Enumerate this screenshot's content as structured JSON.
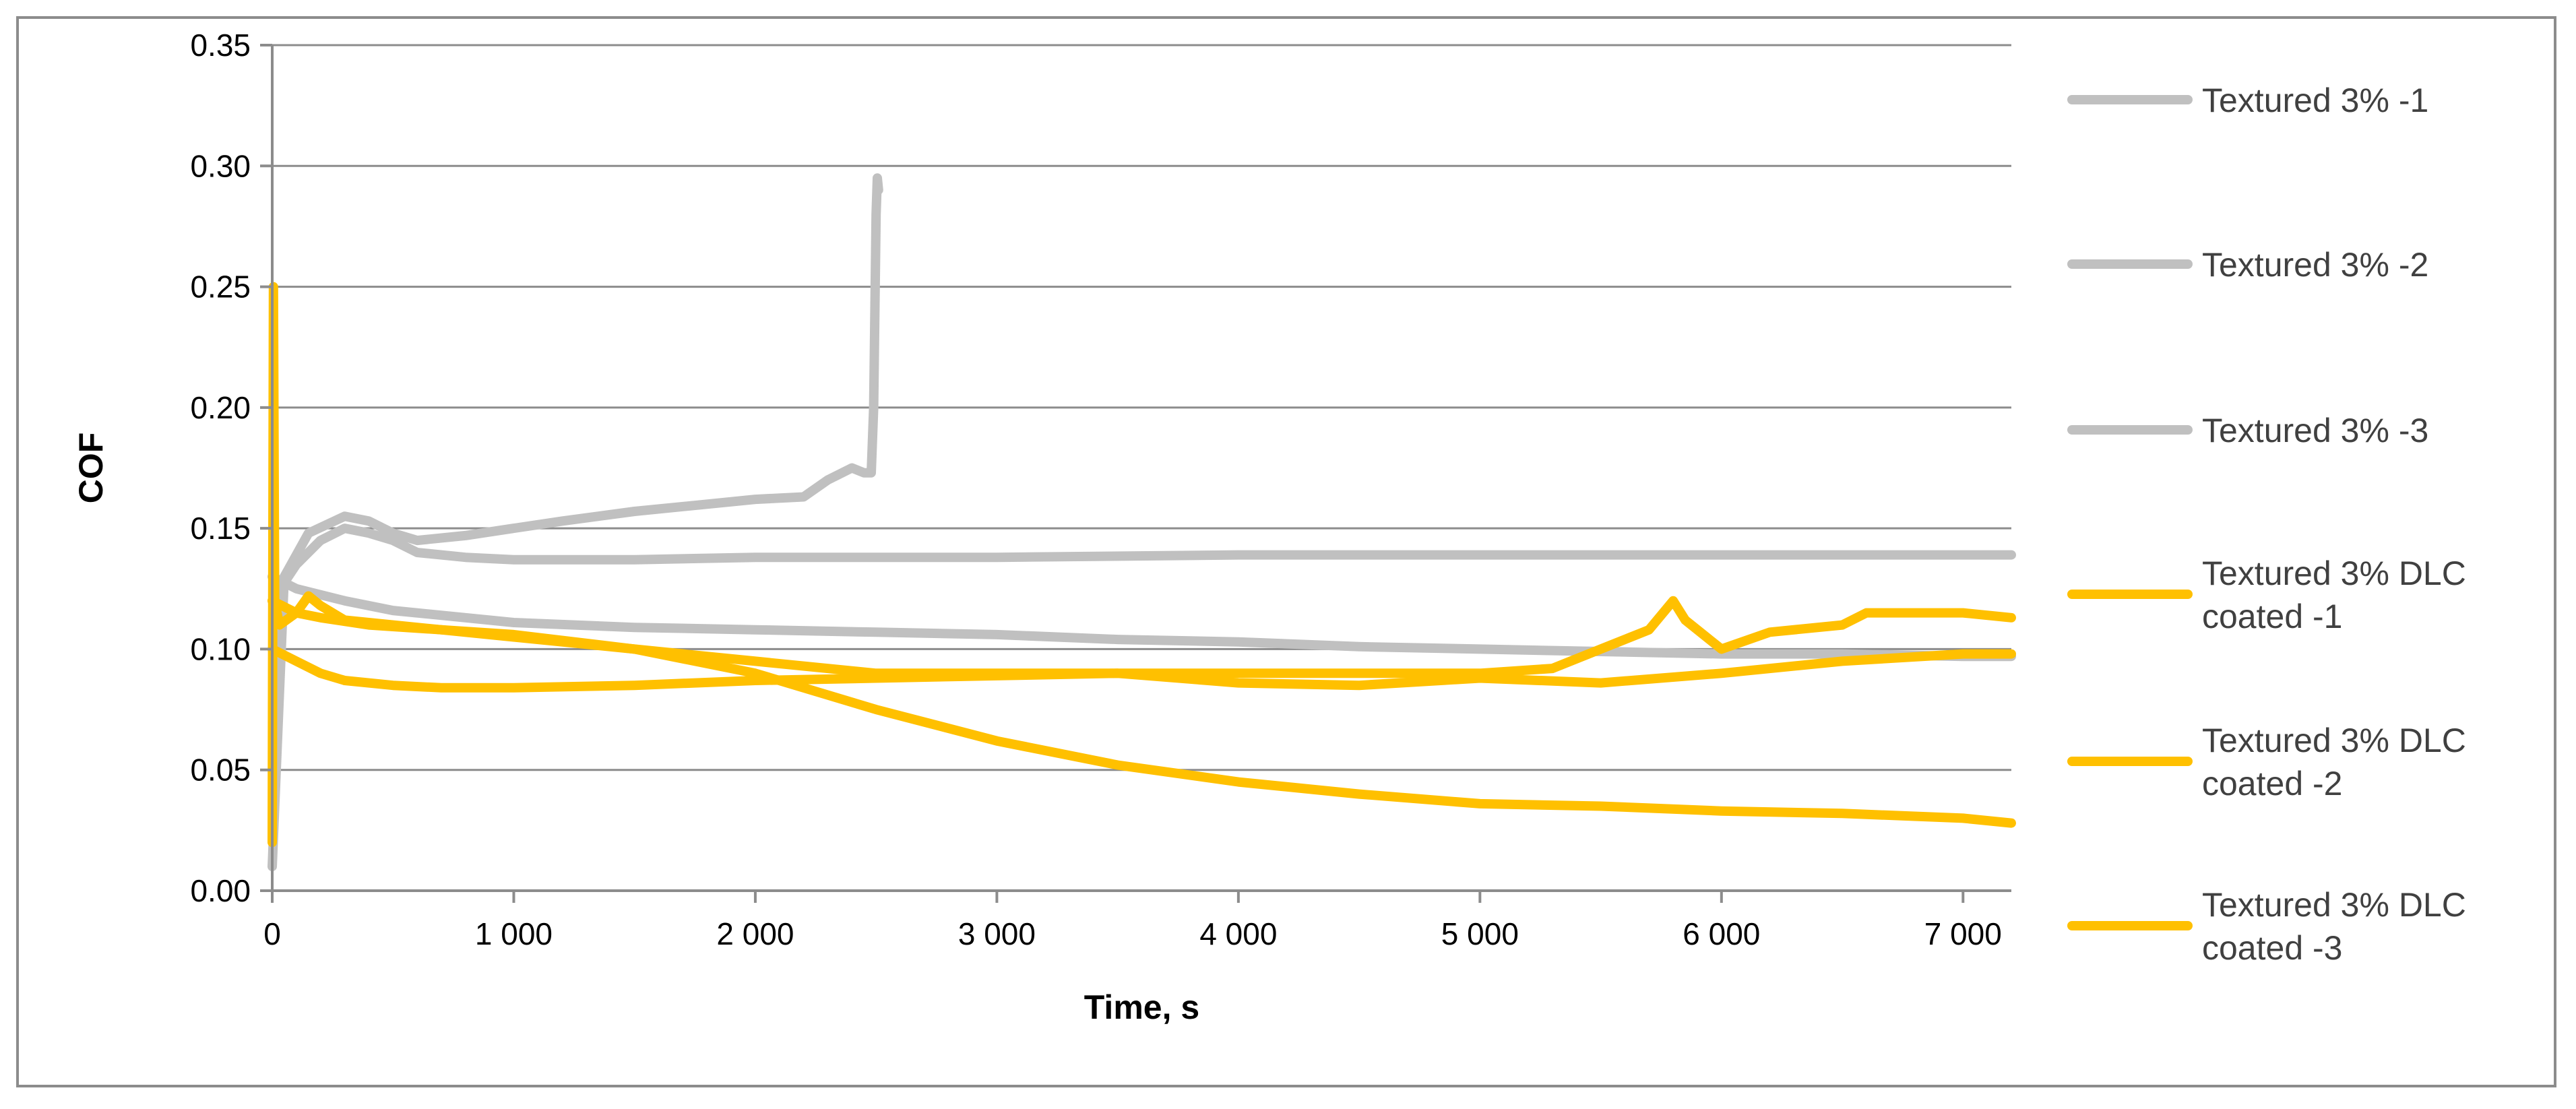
{
  "chart_data": {
    "type": "line",
    "title": "",
    "xlabel": "Time, s",
    "ylabel": "COF",
    "xlim": [
      0,
      7200
    ],
    "ylim": [
      0,
      0.35
    ],
    "x_ticks": [
      0,
      1000,
      2000,
      3000,
      4000,
      5000,
      6000,
      7000
    ],
    "x_tick_labels": [
      "0",
      "1 000",
      "2 000",
      "3 000",
      "4 000",
      "5 000",
      "6 000",
      "7 000"
    ],
    "y_ticks": [
      0,
      0.05,
      0.1,
      0.15,
      0.2,
      0.25,
      0.3,
      0.35
    ],
    "y_tick_labels": [
      "0.00",
      "0.05",
      "0.10",
      "0.15",
      "0.20",
      "0.25",
      "0.30",
      "0.35"
    ],
    "grid": true,
    "legend_position": "right",
    "series": [
      {
        "name": "Textured 3% -1",
        "color": "#c0c0c0",
        "x": [
          0,
          50,
          150,
          300,
          400,
          500,
          600,
          800,
          1000,
          1200,
          1500,
          1800,
          2000,
          2200,
          2300,
          2400,
          2450,
          2480,
          2490,
          2500,
          2505,
          2510
        ],
        "y": [
          0.01,
          0.13,
          0.148,
          0.155,
          0.153,
          0.148,
          0.145,
          0.147,
          0.15,
          0.153,
          0.157,
          0.16,
          0.162,
          0.163,
          0.17,
          0.175,
          0.173,
          0.173,
          0.2,
          0.28,
          0.295,
          0.29
        ]
      },
      {
        "name": "Textured 3% -2",
        "color": "#c0c0c0",
        "x": [
          0,
          100,
          200,
          300,
          400,
          500,
          600,
          800,
          1000,
          1500,
          2000,
          3000,
          4000,
          5000,
          6000,
          7000,
          7200
        ],
        "y": [
          0.12,
          0.135,
          0.145,
          0.15,
          0.148,
          0.145,
          0.14,
          0.138,
          0.137,
          0.137,
          0.138,
          0.138,
          0.139,
          0.139,
          0.139,
          0.139,
          0.139
        ]
      },
      {
        "name": "Textured 3% -3",
        "color": "#c0c0c0",
        "x": [
          0,
          100,
          300,
          500,
          800,
          1000,
          1500,
          2000,
          2500,
          3000,
          3500,
          4000,
          4500,
          5000,
          5500,
          6000,
          6500,
          7000,
          7200
        ],
        "y": [
          0.13,
          0.125,
          0.12,
          0.116,
          0.113,
          0.111,
          0.109,
          0.108,
          0.107,
          0.106,
          0.104,
          0.103,
          0.101,
          0.1,
          0.099,
          0.098,
          0.098,
          0.097,
          0.097
        ]
      },
      {
        "name": "Textured 3% DLC coated -1",
        "color": "#ffc000",
        "x": [
          0,
          5,
          10,
          30,
          100,
          150,
          200,
          300,
          500,
          1000,
          1500,
          2000,
          2500,
          3000,
          3500,
          4000,
          4500,
          5000,
          5300,
          5500,
          5700,
          5800,
          5850,
          6000,
          6200,
          6500,
          6600,
          6800,
          7000,
          7200
        ],
        "y": [
          0.02,
          0.25,
          0.12,
          0.11,
          0.115,
          0.122,
          0.118,
          0.112,
          0.11,
          0.105,
          0.1,
          0.095,
          0.09,
          0.09,
          0.09,
          0.09,
          0.09,
          0.09,
          0.092,
          0.1,
          0.108,
          0.12,
          0.112,
          0.1,
          0.107,
          0.11,
          0.115,
          0.115,
          0.115,
          0.113
        ]
      },
      {
        "name": "Textured 3% DLC coated  -2",
        "color": "#ffc000",
        "x": [
          0,
          100,
          200,
          300,
          500,
          700,
          1000,
          1500,
          2000,
          2500,
          3000,
          3500,
          4000,
          4500,
          5000,
          5500,
          6000,
          6500,
          7000,
          7200
        ],
        "y": [
          0.1,
          0.095,
          0.09,
          0.087,
          0.085,
          0.084,
          0.084,
          0.085,
          0.087,
          0.088,
          0.089,
          0.09,
          0.086,
          0.085,
          0.088,
          0.086,
          0.09,
          0.095,
          0.098,
          0.098
        ]
      },
      {
        "name": "Textured 3% DLC coated  -3",
        "color": "#ffc000",
        "x": [
          0,
          100,
          200,
          400,
          700,
          1000,
          1500,
          2000,
          2500,
          3000,
          3500,
          4000,
          4500,
          5000,
          5500,
          6000,
          6500,
          7000,
          7200
        ],
        "y": [
          0.12,
          0.115,
          0.113,
          0.11,
          0.108,
          0.106,
          0.1,
          0.09,
          0.075,
          0.062,
          0.052,
          0.045,
          0.04,
          0.036,
          0.035,
          0.033,
          0.032,
          0.03,
          0.028
        ]
      }
    ]
  }
}
